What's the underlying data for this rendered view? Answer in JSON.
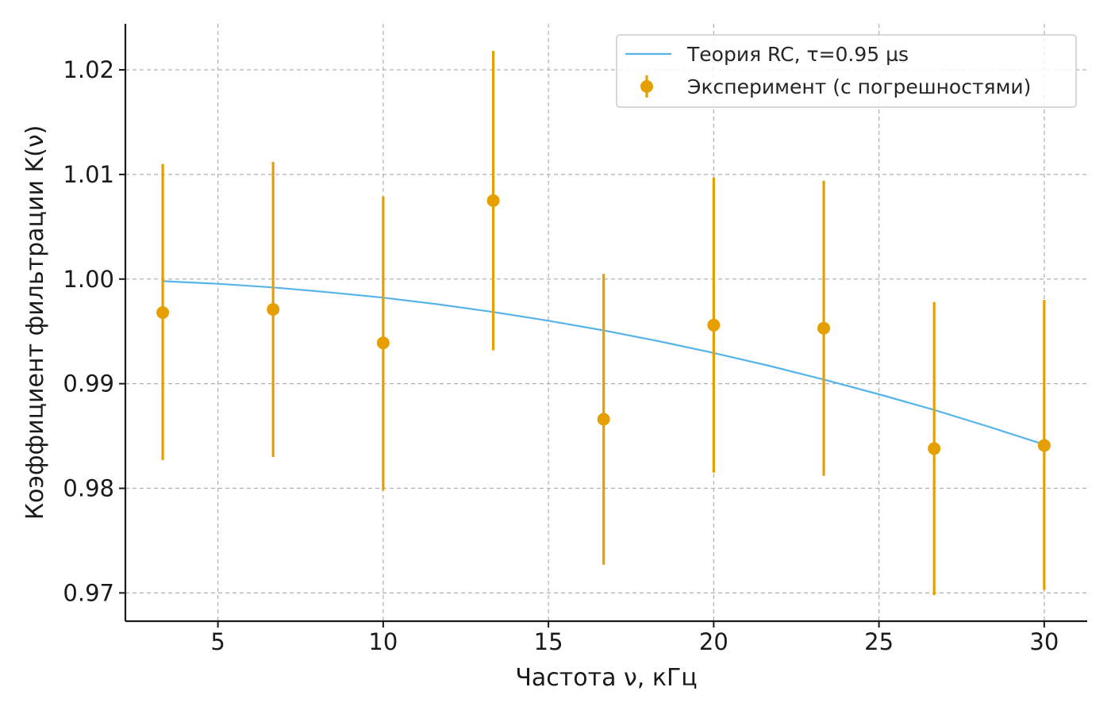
{
  "chart_data": {
    "type": "scatter",
    "xlabel": "Частота ν, кГц",
    "ylabel": "Коэффициент фильтрации K(ν)",
    "xlim": [
      2.2,
      31.3
    ],
    "ylim": [
      0.9673,
      1.0244
    ],
    "x_ticks": [
      5,
      10,
      15,
      20,
      25,
      30
    ],
    "x_tick_labels": [
      "5",
      "10",
      "15",
      "20",
      "25",
      "30"
    ],
    "y_ticks": [
      0.97,
      0.98,
      0.99,
      1.0,
      1.01,
      1.02
    ],
    "y_tick_labels": [
      "0.97",
      "0.98",
      "0.99",
      "1.00",
      "1.01",
      "1.02"
    ],
    "grid": true,
    "legend_position": "top-right",
    "series": [
      {
        "name": "Теория RC, τ=0.95 µs",
        "type": "line",
        "color": "#56b4e9",
        "x": [
          3.33,
          5,
          6.67,
          8.33,
          10,
          11.67,
          13.33,
          15,
          16.67,
          18.33,
          20,
          21.67,
          23.33,
          25,
          26.67,
          28.33,
          30
        ],
        "y": [
          0.9998,
          0.99955,
          0.9992,
          0.99875,
          0.99822,
          0.99759,
          0.99685,
          0.99602,
          0.99509,
          0.99407,
          0.99294,
          0.99172,
          0.9904,
          0.98899,
          0.98749,
          0.98588,
          0.98419
        ]
      },
      {
        "name": "Эксперимент (с погрешностями)",
        "type": "errorbar",
        "color": "#e69f00",
        "x": [
          3.33,
          6.67,
          10,
          13.33,
          16.67,
          20,
          23.33,
          26.67,
          30
        ],
        "y": [
          0.9968,
          0.9971,
          0.9939,
          1.0075,
          0.9866,
          0.9956,
          0.9953,
          0.9838,
          0.9841
        ],
        "yerr_low": [
          0.0141,
          0.0141,
          0.0141,
          0.0143,
          0.0139,
          0.0141,
          0.0141,
          0.014,
          0.0138
        ],
        "yerr_high": [
          0.0142,
          0.0141,
          0.014,
          0.0143,
          0.0139,
          0.0141,
          0.0141,
          0.014,
          0.0139
        ]
      }
    ]
  }
}
